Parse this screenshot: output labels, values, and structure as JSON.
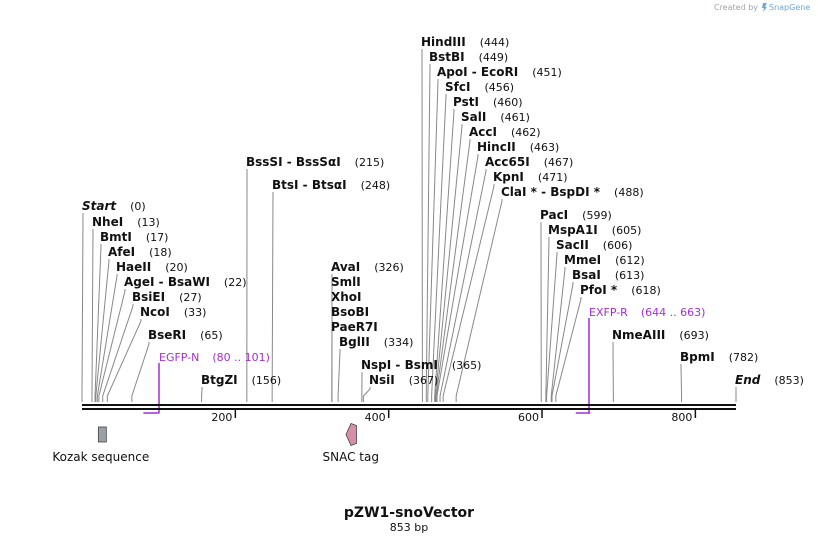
{
  "credit": {
    "prefix": "Created by",
    "brand": "SnapGene"
  },
  "map": {
    "title": "pZW1-snoVector",
    "length_label": "853 bp",
    "length_bp": 853,
    "axis_ticks": [
      "200",
      "400",
      "600",
      "800"
    ]
  },
  "sites": [
    {
      "name": "Start",
      "bp": 0,
      "pos_label": "(0)",
      "italic": true
    },
    {
      "name": "NheI",
      "bp": 13,
      "pos_label": "(13)"
    },
    {
      "name": "BmtI",
      "bp": 17,
      "pos_label": "(17)"
    },
    {
      "name": "AfeI",
      "bp": 18,
      "pos_label": "(18)"
    },
    {
      "name": "HaeII",
      "bp": 20,
      "pos_label": "(20)"
    },
    {
      "name": "AgeI  - BsaWI",
      "bp": 22,
      "pos_label": "(22)"
    },
    {
      "name": "BsiEI",
      "bp": 27,
      "pos_label": "(27)"
    },
    {
      "name": "NcoI",
      "bp": 33,
      "pos_label": "(33)"
    },
    {
      "name": "BseRI",
      "bp": 65,
      "pos_label": "(65)"
    },
    {
      "name": "BtgZI",
      "bp": 156,
      "pos_label": "(156)"
    },
    {
      "name": "BssSI  - BssSαI",
      "bp": 215,
      "pos_label": "(215)"
    },
    {
      "name": "BtsI  - BtsαI",
      "bp": 248,
      "pos_label": "(248)"
    },
    {
      "name": "AvaI",
      "bp": 326,
      "pos_label": "(326)"
    },
    {
      "name": "SmlI",
      "bp": 326,
      "pos_label": ""
    },
    {
      "name": "XhoI",
      "bp": 326,
      "pos_label": ""
    },
    {
      "name": "BsoBI",
      "bp": 326,
      "pos_label": ""
    },
    {
      "name": "PaeR7I",
      "bp": 326,
      "pos_label": ""
    },
    {
      "name": "BglII",
      "bp": 334,
      "pos_label": "(334)"
    },
    {
      "name": "NspI  - BsmI",
      "bp": 365,
      "pos_label": "(365)"
    },
    {
      "name": "NsiI",
      "bp": 367,
      "pos_label": "(367)"
    },
    {
      "name": "HindIII",
      "bp": 444,
      "pos_label": "(444)"
    },
    {
      "name": "BstBI",
      "bp": 449,
      "pos_label": "(449)"
    },
    {
      "name": "ApoI  - EcoRI",
      "bp": 451,
      "pos_label": "(451)"
    },
    {
      "name": "SfcI",
      "bp": 456,
      "pos_label": "(456)"
    },
    {
      "name": "PstI",
      "bp": 460,
      "pos_label": "(460)"
    },
    {
      "name": "SalI",
      "bp": 461,
      "pos_label": "(461)"
    },
    {
      "name": "AccI",
      "bp": 462,
      "pos_label": "(462)"
    },
    {
      "name": "HincII",
      "bp": 463,
      "pos_label": "(463)"
    },
    {
      "name": "Acc65I",
      "bp": 467,
      "pos_label": "(467)"
    },
    {
      "name": "KpnI",
      "bp": 471,
      "pos_label": "(471)"
    },
    {
      "name": "ClaI *  - BspDI *",
      "bp": 488,
      "pos_label": "(488)"
    },
    {
      "name": "PacI",
      "bp": 599,
      "pos_label": "(599)"
    },
    {
      "name": "MspA1I",
      "bp": 605,
      "pos_label": "(605)"
    },
    {
      "name": "SacII",
      "bp": 606,
      "pos_label": "(606)"
    },
    {
      "name": "MmeI",
      "bp": 612,
      "pos_label": "(612)"
    },
    {
      "name": "BsaI",
      "bp": 613,
      "pos_label": "(613)"
    },
    {
      "name": "PfoI *",
      "bp": 618,
      "pos_label": "(618)"
    },
    {
      "name": "NmeAIII",
      "bp": 693,
      "pos_label": "(693)"
    },
    {
      "name": "BpmI",
      "bp": 782,
      "pos_label": "(782)"
    },
    {
      "name": "End",
      "bp": 853,
      "pos_label": "(853)",
      "italic": true
    }
  ],
  "primers": [
    {
      "name": "EGFP-N",
      "range_label": "(80 .. 101)",
      "start": 80,
      "end": 101,
      "strand": "forward"
    },
    {
      "name": "EXFP-R",
      "range_label": "(644 .. 663)",
      "start": 644,
      "end": 663,
      "strand": "reverse"
    }
  ],
  "features": [
    {
      "name": "Kozak sequence",
      "start": 20,
      "end": 29,
      "shape": "box",
      "color": "#9aa0a6"
    },
    {
      "name": "SNAC tag",
      "start": 343,
      "end": 358,
      "shape": "arrow-left",
      "color": "#d68fa8"
    }
  ],
  "colors": {
    "primer": "#a32fd1",
    "backbone": "#111111",
    "leader": "#888888"
  }
}
